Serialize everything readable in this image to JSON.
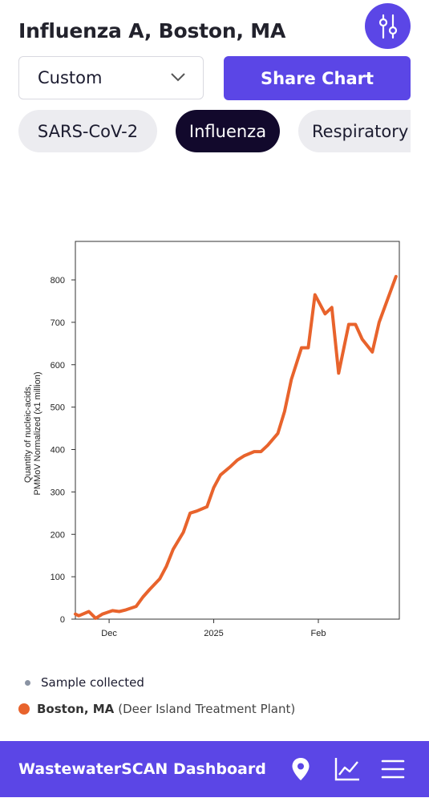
{
  "header": {
    "title": "Influenza A, Boston, MA",
    "filter_icon": "sliders-icon"
  },
  "controls": {
    "range_select_value": "Custom",
    "share_label": "Share Chart"
  },
  "chips": [
    {
      "label": "SARS-CoV-2",
      "active": false
    },
    {
      "label": "Influenza",
      "active": true
    },
    {
      "label": "Respiratory",
      "active": false
    }
  ],
  "colors": {
    "accent": "#5b46e6",
    "series": "#e8632c",
    "chip_active_bg": "#12092c",
    "chip_inactive_bg": "#ececf0"
  },
  "chart_data": {
    "type": "line",
    "title": "",
    "xlabel": "",
    "ylabel": "Quantity of nucleic-acids, PMMoV Normalized (x1 million)",
    "ylim": [
      0,
      885
    ],
    "yticks": [
      0,
      100,
      200,
      300,
      400,
      500,
      600,
      700,
      800
    ],
    "xlim": [
      "2024-11-21",
      "2025-02-25"
    ],
    "xticks": [
      {
        "label": "Dec",
        "date": "2024-12-01"
      },
      {
        "label": "2025",
        "date": "2025-01-01"
      },
      {
        "label": "Feb",
        "date": "2025-02-01"
      }
    ],
    "grid": false,
    "series": [
      {
        "name": "Boston, MA",
        "x": [
          "2024-11-21",
          "2024-11-22",
          "2024-11-25",
          "2024-11-27",
          "2024-11-29",
          "2024-12-02",
          "2024-12-04",
          "2024-12-06",
          "2024-12-09",
          "2024-12-11",
          "2024-12-13",
          "2024-12-16",
          "2024-12-18",
          "2024-12-20",
          "2024-12-23",
          "2024-12-25",
          "2024-12-27",
          "2024-12-30",
          "2025-01-01",
          "2025-01-03",
          "2025-01-06",
          "2025-01-08",
          "2025-01-10",
          "2025-01-13",
          "2025-01-15",
          "2025-01-17",
          "2025-01-20",
          "2025-01-22",
          "2025-01-24",
          "2025-01-27",
          "2025-01-29",
          "2025-01-31",
          "2025-02-03",
          "2025-02-05",
          "2025-02-07",
          "2025-02-10",
          "2025-02-12",
          "2025-02-14",
          "2025-02-17",
          "2025-02-19",
          "2025-02-24"
        ],
        "y": [
          12,
          8,
          18,
          2,
          12,
          20,
          18,
          22,
          30,
          52,
          70,
          95,
          125,
          165,
          205,
          250,
          255,
          265,
          310,
          340,
          360,
          375,
          385,
          395,
          395,
          410,
          438,
          490,
          565,
          640,
          640,
          765,
          720,
          735,
          580,
          695,
          695,
          660,
          630,
          700,
          808
        ]
      }
    ]
  },
  "legend": {
    "sample_label": "Sample collected",
    "site_name": "Boston, MA",
    "site_plant": "(Deer Island Treatment Plant)"
  },
  "bottombar": {
    "brand": "WastewaterSCAN Dashboard",
    "icons": [
      "location-pin-icon",
      "chart-icon",
      "menu-icon"
    ]
  }
}
